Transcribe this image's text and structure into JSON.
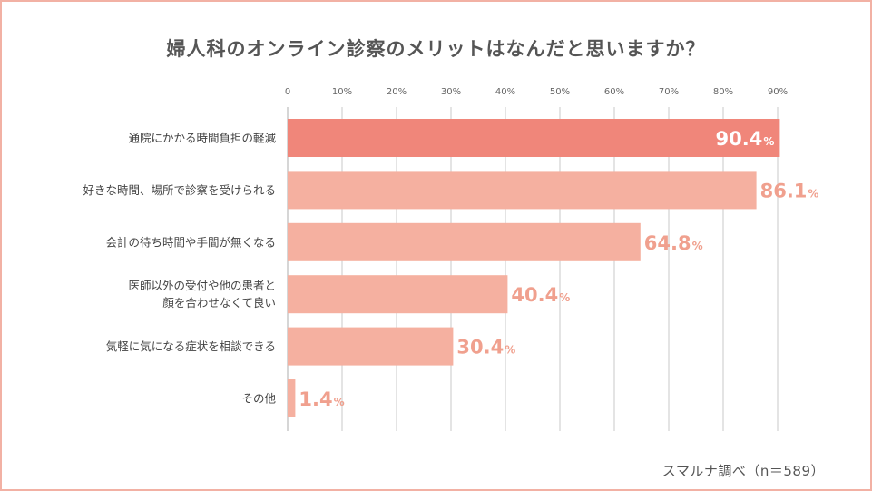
{
  "chart_data": {
    "type": "bar",
    "orientation": "horizontal",
    "title": "婦人科のオンライン診察のメリットはなんだと思いますか？",
    "unit": "%",
    "xlim": [
      0,
      90
    ],
    "x_ticks": [
      "0",
      "10%",
      "20%",
      "30%",
      "40%",
      "50%",
      "60%",
      "70%",
      "80%",
      "90%"
    ],
    "tick_values": [
      0,
      10,
      20,
      30,
      40,
      50,
      60,
      70,
      80,
      90
    ],
    "grid": true,
    "categories": [
      [
        "通院にかかる時間負担の軽減"
      ],
      [
        "好きな時間、場所で診察を受けられる"
      ],
      [
        "会計の待ち時間や手間が無くなる"
      ],
      [
        "医師以外の受付や他の患者と",
        "顔を合わせなくて良い"
      ],
      [
        "気軽に気になる症状を相談できる"
      ],
      [
        "その他"
      ]
    ],
    "values": [
      90.4,
      86.1,
      64.8,
      40.4,
      30.4,
      1.4
    ],
    "value_labels": [
      "90.4",
      "86.1",
      "64.8",
      "40.4",
      "30.4",
      "1.4"
    ],
    "colors": {
      "highlight_bar": "#f0867a",
      "bar": "#f5b0a0",
      "value_text": "#f0a08e",
      "highlight_value_text": "#ffffff",
      "grid": "#bbbbbb",
      "frame": "#f2b1a4"
    }
  },
  "source": "スマルナ調べ（n＝589）"
}
